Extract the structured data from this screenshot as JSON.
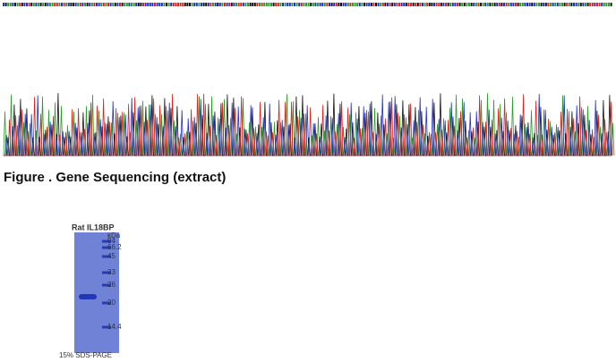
{
  "figure_caption": "Figure . Gene Sequencing (extract)",
  "gel": {
    "title": "Rat IL18BP",
    "unit": "kDa",
    "markers": [
      94,
      66.2,
      45,
      33,
      26,
      20,
      14.4
    ],
    "caption": "15% SDS-PAGE"
  }
}
